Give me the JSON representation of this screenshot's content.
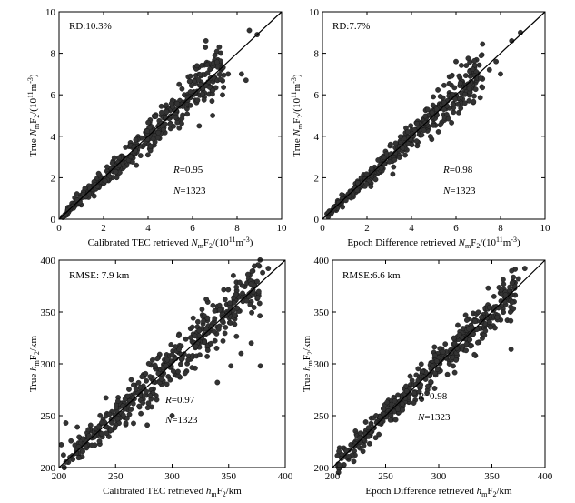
{
  "colors": {
    "point": "#333333",
    "axis": "#000000",
    "background": "#ffffff"
  },
  "chart_data": [
    {
      "id": "a",
      "type": "scatter",
      "xlim": [
        0,
        10
      ],
      "ylim": [
        0,
        10
      ],
      "xticks": [
        "0",
        "2",
        "4",
        "6",
        "8",
        "10"
      ],
      "yticks": [
        "0",
        "2",
        "4",
        "6",
        "8",
        "10"
      ],
      "xlabel": {
        "prefix": "Calibrated TEC retrieved ",
        "var": "N",
        "sub": "m",
        "mid": "F",
        "sub2": "2",
        "unit": "/(10",
        "sup": "11",
        "unit2": "m",
        "sup2": "-3",
        "end": ")"
      },
      "ylabel": {
        "prefix": "True ",
        "var": "N",
        "sub": "m",
        "mid": "F",
        "sub2": "2",
        "unit": "/(10",
        "sup": "11",
        "unit2": "m",
        "sup2": "-3",
        "end": ")"
      },
      "metric_text": "RD:10.3%",
      "r_label": "R",
      "r_value": "=0.95",
      "n_label": "N",
      "n_value": "=1323",
      "reference_line": [
        0,
        10
      ],
      "cluster": {
        "n": 420,
        "xmin": 0.15,
        "xmax": 7.4,
        "spread": 0.085,
        "seed": 11
      },
      "outliers": [
        [
          8.9,
          8.9
        ],
        [
          8.55,
          9.1
        ],
        [
          6.6,
          8.6
        ],
        [
          7.2,
          8.3
        ],
        [
          8.2,
          7.0
        ],
        [
          8.4,
          6.7
        ],
        [
          7.0,
          7.9
        ],
        [
          6.2,
          7.4
        ],
        [
          5.9,
          6.9
        ],
        [
          6.9,
          5.0
        ],
        [
          6.3,
          4.5
        ],
        [
          7.6,
          7.0
        ],
        [
          6.8,
          6.8
        ],
        [
          5.4,
          4.4
        ]
      ]
    },
    {
      "id": "b",
      "type": "scatter",
      "xlim": [
        0,
        10
      ],
      "ylim": [
        0,
        10
      ],
      "xticks": [
        "0",
        "2",
        "4",
        "6",
        "8",
        "10"
      ],
      "yticks": [
        "0",
        "2",
        "4",
        "6",
        "8",
        "10"
      ],
      "xlabel": {
        "prefix": "Epoch Difference retrieved ",
        "var": "N",
        "sub": "m",
        "mid": "F",
        "sub2": "2",
        "unit": "/(10",
        "sup": "11",
        "unit2": "m",
        "sup2": "-3",
        "end": ")"
      },
      "ylabel": {
        "prefix": "True ",
        "var": "N",
        "sub": "m",
        "mid": "F",
        "sub2": "2",
        "unit": "/(10",
        "sup": "11",
        "unit2": "m",
        "sup2": "-3",
        "end": ")"
      },
      "metric_text": "RD:7.7%",
      "r_label": "R",
      "r_value": "=0.98",
      "n_label": "N",
      "n_value": "=1323",
      "reference_line": [
        0,
        10
      ],
      "cluster": {
        "n": 420,
        "xmin": 0.15,
        "xmax": 7.2,
        "spread": 0.07,
        "seed": 23
      },
      "outliers": [
        [
          8.9,
          9.0
        ],
        [
          8.5,
          8.6
        ],
        [
          7.8,
          7.6
        ],
        [
          8.0,
          7.0
        ],
        [
          7.1,
          6.8
        ],
        [
          6.0,
          7.6
        ],
        [
          6.4,
          5.6
        ],
        [
          7.5,
          7.2
        ],
        [
          5.8,
          6.9
        ],
        [
          6.6,
          6.3
        ]
      ]
    },
    {
      "id": "c",
      "type": "scatter",
      "xlim": [
        200,
        400
      ],
      "ylim": [
        200,
        400
      ],
      "xticks": [
        "200",
        "250",
        "300",
        "350",
        "400"
      ],
      "yticks": [
        "200",
        "250",
        "300",
        "350",
        "400"
      ],
      "xlabel": {
        "prefix": "Calibrated TEC retrieved ",
        "var": "h",
        "sub": "m",
        "mid": "F",
        "sub2": "2",
        "unit": "/km"
      },
      "ylabel": {
        "prefix": "True ",
        "var": "h",
        "sub": "m",
        "mid": "F",
        "sub2": "2",
        "unit": "/km"
      },
      "metric_text": "RMSE: 7.9 km",
      "r_label": "R",
      "r_value": "=0.97",
      "n_label": "N",
      "n_value": "=1323",
      "reference_line": [
        200,
        400
      ],
      "cluster": {
        "n": 440,
        "xmin": 203,
        "xmax": 378,
        "spread": 0.035,
        "seed": 37
      },
      "outliers": [
        [
          385,
          392
        ],
        [
          206,
          243
        ],
        [
          202,
          222
        ],
        [
          278,
          241
        ],
        [
          300,
          250
        ],
        [
          352,
          298
        ],
        [
          378,
          298
        ],
        [
          361,
          310
        ],
        [
          370,
          320
        ],
        [
          345,
          322
        ],
        [
          340,
          282
        ],
        [
          380,
          388
        ],
        [
          324,
          332
        ]
      ]
    },
    {
      "id": "d",
      "type": "scatter",
      "xlim": [
        200,
        400
      ],
      "ylim": [
        200,
        400
      ],
      "xticks": [
        "200",
        "250",
        "300",
        "350",
        "400"
      ],
      "yticks": [
        "200",
        "250",
        "300",
        "350",
        "400"
      ],
      "xlabel": {
        "prefix": "Epoch Difference retrieved ",
        "var": "h",
        "sub": "m",
        "mid": "F",
        "sub2": "2",
        "unit": "/km"
      },
      "ylabel": {
        "prefix": "True ",
        "var": "h",
        "sub": "m",
        "mid": "F",
        "sub2": "2",
        "unit": "/km"
      },
      "metric_text": "RMSE:6.6 km",
      "r_label": "R",
      "r_value": "=0.98",
      "n_label": "N",
      "n_value": "=1323",
      "reference_line": [
        200,
        400
      ],
      "cluster": {
        "n": 440,
        "xmin": 203,
        "xmax": 372,
        "spread": 0.028,
        "seed": 53
      },
      "outliers": [
        [
          381,
          392
        ],
        [
          369,
          378
        ],
        [
          362,
          360
        ],
        [
          355,
          345
        ],
        [
          340,
          340
        ],
        [
          368,
          314
        ],
        [
          352,
          365
        ],
        [
          375,
          382
        ],
        [
          310,
          300
        ]
      ]
    }
  ]
}
